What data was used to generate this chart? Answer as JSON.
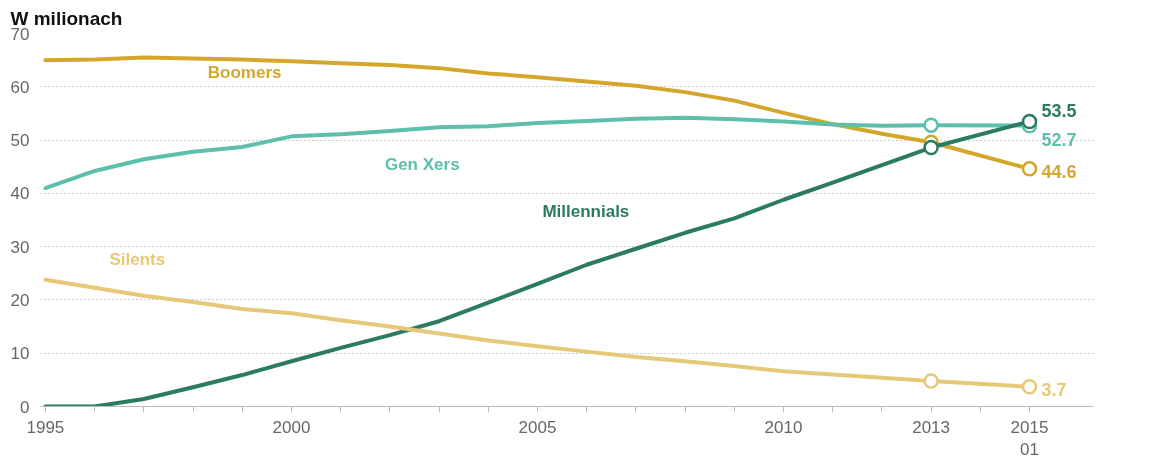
{
  "chart_data": {
    "type": "line",
    "ylabel": "W milionach",
    "xlim": [
      1994.9,
      2016.3
    ],
    "ylim": [
      0,
      70
    ],
    "xticks": [
      1995,
      {
        "value": 1996,
        "label": null
      },
      {
        "value": 1997,
        "label": null
      },
      {
        "value": 1998,
        "label": null
      },
      {
        "value": 1999,
        "label": null
      },
      2000,
      {
        "value": 2001,
        "label": null
      },
      {
        "value": 2002,
        "label": null
      },
      {
        "value": 2003,
        "label": null
      },
      {
        "value": 2004,
        "label": null
      },
      2005,
      {
        "value": 2006,
        "label": null
      },
      {
        "value": 2007,
        "label": null
      },
      {
        "value": 2008,
        "label": null
      },
      {
        "value": 2009,
        "label": null
      },
      2010,
      {
        "value": 2011,
        "label": null
      },
      {
        "value": 2012,
        "label": null
      },
      2013,
      {
        "value": 2014,
        "label": null
      },
      {
        "value": 2015,
        "label": "2015\n01"
      }
    ],
    "yticks": [
      0,
      10,
      20,
      30,
      40,
      50,
      60,
      70
    ],
    "grid": "y",
    "line_style": "solid",
    "series": [
      {
        "name": "Boomers",
        "color": "#d4a72c",
        "marker": "none",
        "x": [
          1995,
          1996,
          1997,
          1998,
          1999,
          2000,
          2001,
          2002,
          2003,
          2004,
          2005,
          2006,
          2007,
          2008,
          2009,
          2010,
          2011,
          2012,
          2013
        ],
        "values": [
          65.0,
          65.1,
          65.5,
          65.3,
          65.1,
          64.8,
          64.4,
          64.1,
          63.5,
          62.5,
          61.8,
          61.0,
          60.2,
          59.0,
          57.4,
          55.1,
          53.0,
          51.2,
          49.6
        ]
      },
      {
        "name": "Gen Xers",
        "color": "#5dbfac",
        "marker": "none",
        "x": [
          1995,
          1996,
          1997,
          1998,
          1999,
          2000,
          2001,
          2002,
          2003,
          2004,
          2005,
          2006,
          2007,
          2008,
          2009,
          2010,
          2011,
          2012,
          2013
        ],
        "values": [
          41.0,
          44.2,
          46.4,
          47.8,
          48.7,
          50.7,
          51.1,
          51.7,
          52.4,
          52.6,
          53.2,
          53.6,
          54.0,
          54.2,
          53.9,
          53.5,
          52.9,
          52.7,
          52.8
        ]
      },
      {
        "name": "Millennials",
        "color": "#2b7a62",
        "marker": "none",
        "x": [
          1995,
          1996,
          1997,
          1998,
          1999,
          2000,
          2001,
          2002,
          2003,
          2004,
          2005,
          2006,
          2007,
          2008,
          2009,
          2010,
          2011,
          2012,
          2013
        ],
        "values": [
          0,
          0,
          1.4,
          3.6,
          5.9,
          8.5,
          11.0,
          13.4,
          16.0,
          19.5,
          23.0,
          26.6,
          29.6,
          32.6,
          35.3,
          38.8,
          42.0,
          45.3,
          48.6
        ]
      },
      {
        "name": "Silents",
        "color": "#e6c876",
        "marker": "none",
        "x": [
          1995,
          1996,
          1997,
          1998,
          1999,
          2000,
          2001,
          2002,
          2003,
          2004,
          2005,
          2006,
          2007,
          2008,
          2009,
          2010,
          2011,
          2012,
          2013
        ],
        "values": [
          23.8,
          22.3,
          20.8,
          19.6,
          18.3,
          17.5,
          16.2,
          15.0,
          13.7,
          12.4,
          11.3,
          10.3,
          9.3,
          8.5,
          7.6,
          6.6,
          6.0,
          5.4,
          4.8
        ]
      },
      {
        "color": "#d4a72c",
        "marker": "circle",
        "x": [
          2013,
          2015
        ],
        "values": [
          49.6,
          44.6
        ],
        "value_labels": [
          null,
          "44.6"
        ]
      },
      {
        "color": "#5dbfac",
        "marker": "circle",
        "x": [
          2013,
          2015
        ],
        "values": [
          52.8,
          52.7
        ],
        "value_labels": [
          null,
          "52.7"
        ]
      },
      {
        "color": "#2b7a62",
        "marker": "circle",
        "x": [
          2013,
          2015
        ],
        "values": [
          48.6,
          53.5
        ],
        "value_labels": [
          null,
          "53.5"
        ]
      },
      {
        "color": "#e6c876",
        "marker": "circle",
        "x": [
          2013,
          2015
        ],
        "values": [
          4.8,
          3.7
        ],
        "value_labels": [
          null,
          "3.7"
        ]
      }
    ]
  }
}
